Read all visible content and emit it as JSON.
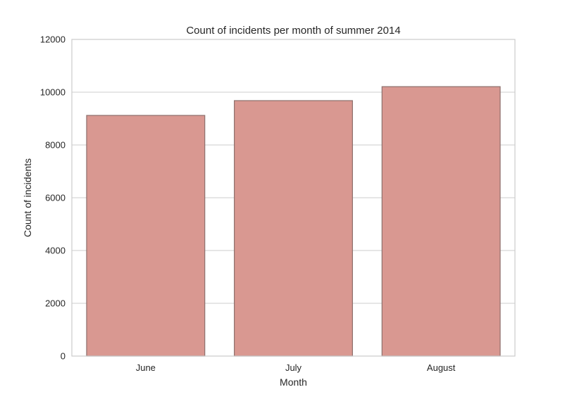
{
  "chart_data": {
    "type": "bar",
    "title": "Count of incidents per month of summer 2014",
    "xlabel": "Month",
    "ylabel": "Count of incidents",
    "categories": [
      "June",
      "July",
      "August"
    ],
    "values": [
      9120,
      9680,
      10210
    ],
    "ylim": [
      0,
      12000
    ],
    "yticks": [
      "0",
      "2000",
      "4000",
      "6000",
      "8000",
      "10000",
      "12000"
    ],
    "grid": true,
    "bar_color": "#d99891",
    "bar_edge_color": "#8c6f6c",
    "grid_color": "#cccccc",
    "frame_color": "#cccccc"
  }
}
